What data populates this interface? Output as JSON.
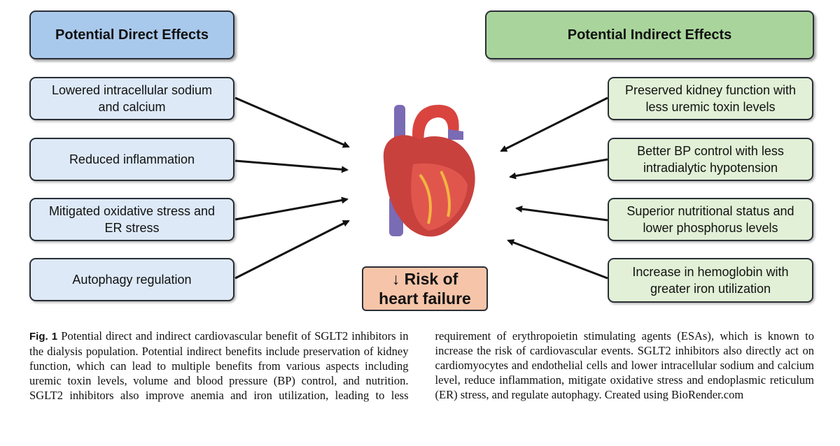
{
  "figure": {
    "direct": {
      "title": "Potential Direct Effects",
      "items": [
        "Lowered intracellular sodium and calcium",
        "Reduced inflammation",
        "Mitigated oxidative stress and ER stress",
        "Autophagy regulation"
      ]
    },
    "indirect": {
      "title": "Potential Indirect Effects",
      "items": [
        "Preserved kidney function with less uremic toxin levels",
        "Better BP control with less intradialytic hypotension",
        "Superior nutritional status and lower phosphorus levels",
        "Increase in hemoglobin with greater iron utilization"
      ]
    },
    "outcome": [
      "↓ Risk of",
      "heart failure"
    ]
  },
  "caption": {
    "label": "Fig. 1",
    "text": "Potential direct and indirect cardiovascular benefit of SGLT2 inhibitors in the dialysis population. Potential indirect benefits include preservation of kidney function, which can lead to multiple benefits from various aspects including uremic toxin levels, volume and blood pressure (BP) control, and nutrition. SGLT2 inhibitors also improve anemia and iron utilization, leading to less requirement of erythropoietin stimulating agents (ESAs), which is known to increase the risk of cardiovascular events. SGLT2 inhibitors also directly act on cardiomyocytes and endothelial cells and lower intracellular sodium and calcium level, reduce inflammation, mitigate oxidative stress and endoplasmic reticulum (ER) stress, and regulate autophagy. Created using BioRender.com"
  }
}
